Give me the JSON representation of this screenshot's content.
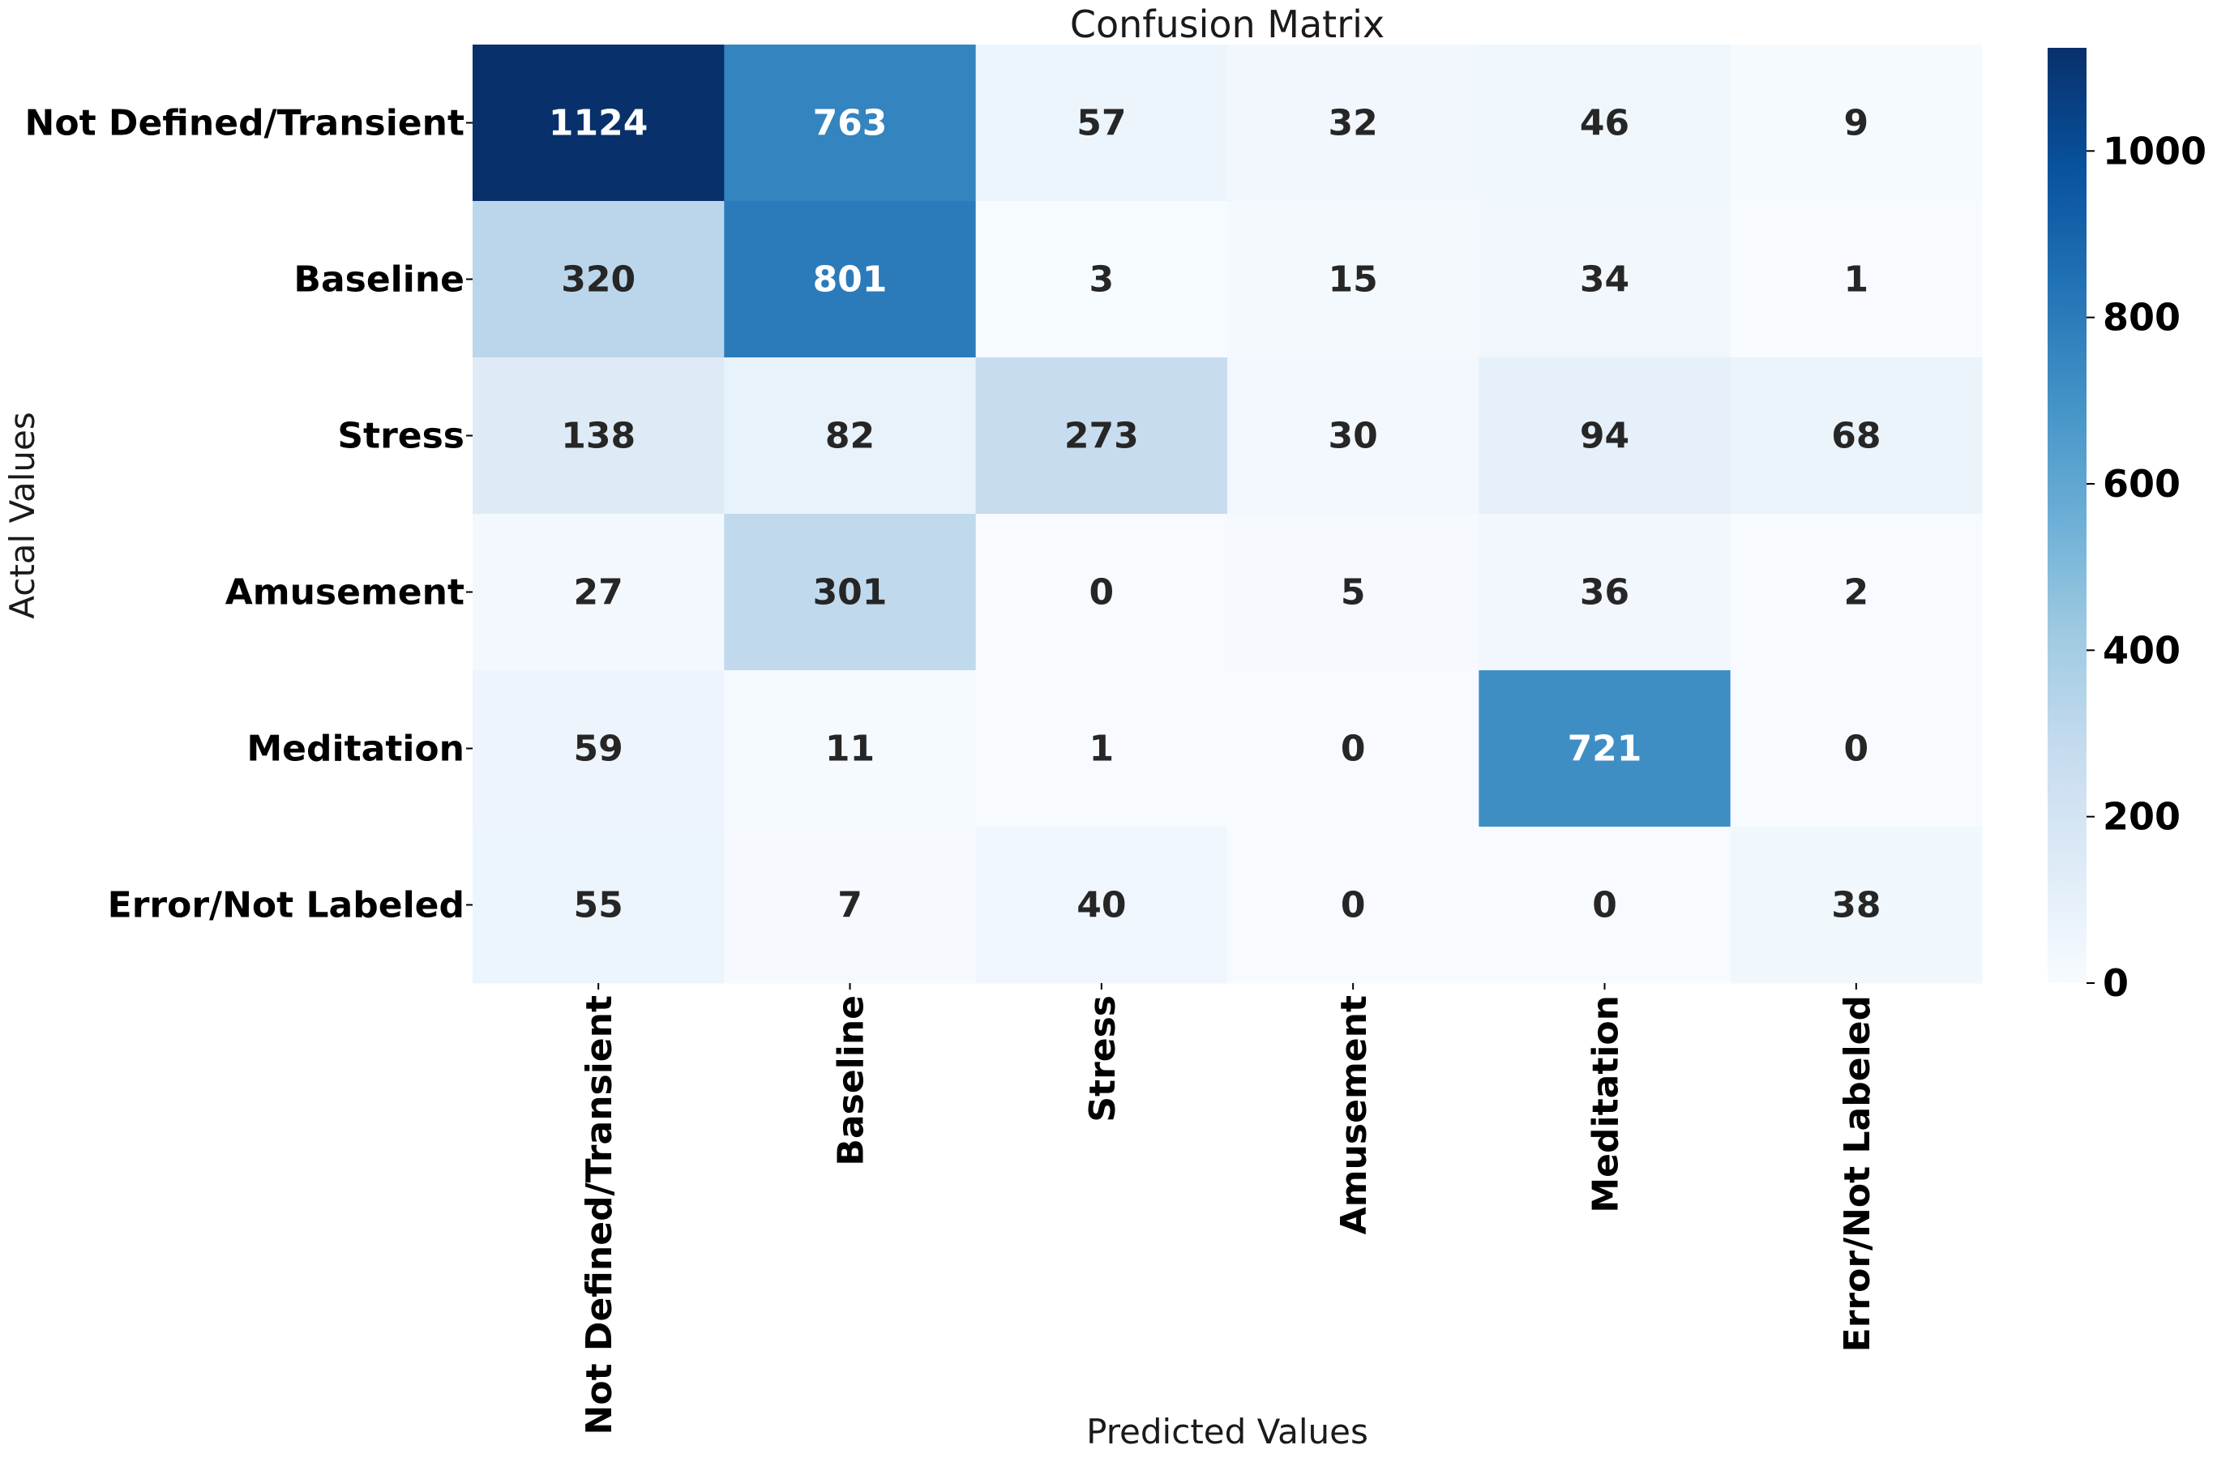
{
  "chart_data": {
    "type": "heatmap",
    "title": "Confusion Matrix",
    "xlabel": "Predicted Values",
    "ylabel": "Actal Values",
    "x_categories": [
      "Not Defined/Transient",
      "Baseline",
      "Stress",
      "Amusement",
      "Meditation",
      "Error/Not Labeled"
    ],
    "y_categories": [
      "Not Defined/Transient",
      "Baseline",
      "Stress",
      "Amusement",
      "Meditation",
      "Error/Not Labeled"
    ],
    "values": [
      [
        1124,
        763,
        57,
        32,
        46,
        9
      ],
      [
        320,
        801,
        3,
        15,
        34,
        1
      ],
      [
        138,
        82,
        273,
        30,
        94,
        68
      ],
      [
        27,
        301,
        0,
        5,
        36,
        2
      ],
      [
        59,
        11,
        1,
        0,
        721,
        0
      ],
      [
        55,
        7,
        40,
        0,
        0,
        38
      ]
    ],
    "colormap": "Blues",
    "colorbar": {
      "range": [
        0,
        1124
      ],
      "ticks": [
        0,
        200,
        400,
        600,
        800,
        1000
      ]
    }
  }
}
